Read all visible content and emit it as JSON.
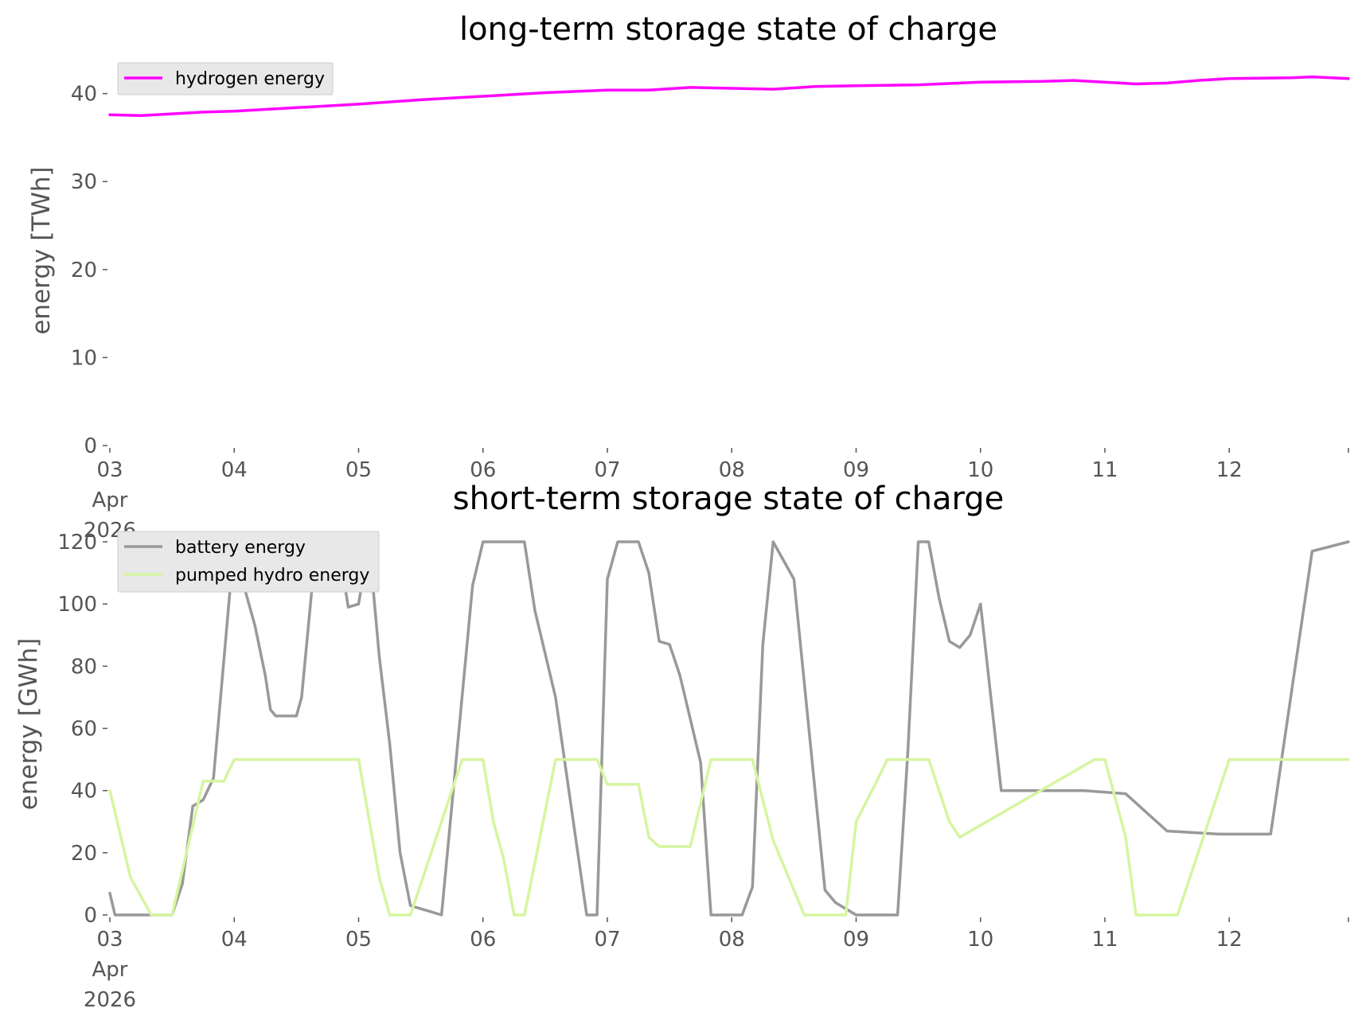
{
  "chart_data": [
    {
      "type": "line",
      "title": "long-term storage state of charge",
      "xlabel": "",
      "ylabel": "energy [TWh]",
      "ylim": [
        0,
        42.5
      ],
      "yticks": [
        0,
        10,
        20,
        30,
        40
      ],
      "x_range_days": [
        "2026-04-03",
        "2026-04-12T23:00"
      ],
      "x_tick_labels": [
        [
          "03",
          "Apr",
          "2026"
        ],
        [
          "04"
        ],
        [
          "05"
        ],
        [
          "06"
        ],
        [
          "07"
        ],
        [
          "08"
        ],
        [
          "09"
        ],
        [
          "10"
        ],
        [
          "11"
        ],
        [
          "12"
        ]
      ],
      "grid": false,
      "legend_placement": "top-left",
      "series": [
        {
          "name": "hydrogen energy",
          "color": "#ff00ff",
          "x": [
            "2026-04-03T00:00",
            "2026-04-03T06:00",
            "2026-04-03T12:00",
            "2026-04-03T18:00",
            "2026-04-04T00:00",
            "2026-04-04T12:00",
            "2026-04-05T00:00",
            "2026-04-05T12:00",
            "2026-04-06T00:00",
            "2026-04-06T12:00",
            "2026-04-07T00:00",
            "2026-04-07T08:00",
            "2026-04-07T16:00",
            "2026-04-08T00:00",
            "2026-04-08T08:00",
            "2026-04-08T16:00",
            "2026-04-09T00:00",
            "2026-04-09T12:00",
            "2026-04-10T00:00",
            "2026-04-10T12:00",
            "2026-04-10T18:00",
            "2026-04-11T06:00",
            "2026-04-11T12:00",
            "2026-04-11T18:00",
            "2026-04-12T00:00",
            "2026-04-12T12:00",
            "2026-04-12T16:00",
            "2026-04-12T23:00"
          ],
          "values": [
            37.6,
            37.5,
            37.7,
            37.9,
            38.0,
            38.4,
            38.8,
            39.3,
            39.7,
            40.1,
            40.4,
            40.4,
            40.7,
            40.6,
            40.5,
            40.8,
            40.9,
            41.0,
            41.3,
            41.4,
            41.5,
            41.1,
            41.2,
            41.5,
            41.7,
            41.8,
            41.9,
            41.7
          ]
        }
      ]
    },
    {
      "type": "line",
      "title": "short-term storage state of charge",
      "xlabel": "",
      "ylabel": "energy [GWh]",
      "ylim": [
        0,
        120
      ],
      "yticks": [
        0,
        20,
        40,
        60,
        80,
        100,
        120
      ],
      "x_range_days": [
        "2026-04-03",
        "2026-04-12T23:00"
      ],
      "x_tick_labels": [
        [
          "03",
          "Apr",
          "2026"
        ],
        [
          "04"
        ],
        [
          "05"
        ],
        [
          "06"
        ],
        [
          "07"
        ],
        [
          "08"
        ],
        [
          "09"
        ],
        [
          "10"
        ],
        [
          "11"
        ],
        [
          "12"
        ]
      ],
      "grid": false,
      "legend_placement": "top-left",
      "series": [
        {
          "name": "battery energy",
          "color": "#999999",
          "x": [
            "2026-04-03T00:00",
            "2026-04-03T01:00",
            "2026-04-03T02:00",
            "2026-04-03T12:00",
            "2026-04-03T14:00",
            "2026-04-03T16:00",
            "2026-04-03T18:00",
            "2026-04-03T20:00",
            "2026-04-04T00:00",
            "2026-04-04T02:00",
            "2026-04-04T04:00",
            "2026-04-04T06:00",
            "2026-04-04T07:00",
            "2026-04-04T08:00",
            "2026-04-04T09:00",
            "2026-04-04T12:00",
            "2026-04-04T13:00",
            "2026-04-04T15:00",
            "2026-04-04T18:00",
            "2026-04-04T20:00",
            "2026-04-04T22:00",
            "2026-04-05T00:00",
            "2026-04-05T02:00",
            "2026-04-05T04:00",
            "2026-04-05T06:00",
            "2026-04-05T08:00",
            "2026-04-05T10:00",
            "2026-04-05T16:00",
            "2026-04-05T22:00",
            "2026-04-06T00:00",
            "2026-04-06T04:00",
            "2026-04-06T08:00",
            "2026-04-06T10:00",
            "2026-04-06T14:00",
            "2026-04-06T20:00",
            "2026-04-06T22:00",
            "2026-04-07T00:00",
            "2026-04-07T02:00",
            "2026-04-07T06:00",
            "2026-04-07T08:00",
            "2026-04-07T10:00",
            "2026-04-07T12:00",
            "2026-04-07T14:00",
            "2026-04-07T18:00",
            "2026-04-07T20:00",
            "2026-04-07T22:00",
            "2026-04-08T02:00",
            "2026-04-08T04:00",
            "2026-04-08T06:00",
            "2026-04-08T08:00",
            "2026-04-08T12:00",
            "2026-04-08T18:00",
            "2026-04-08T20:00",
            "2026-04-08T22:00",
            "2026-04-09T00:00",
            "2026-04-09T02:00",
            "2026-04-09T04:00",
            "2026-04-09T06:00",
            "2026-04-09T08:00",
            "2026-04-09T10:00",
            "2026-04-09T12:00",
            "2026-04-09T14:00",
            "2026-04-09T16:00",
            "2026-04-09T18:00",
            "2026-04-09T20:00",
            "2026-04-09T22:00",
            "2026-04-10T00:00",
            "2026-04-10T04:00",
            "2026-04-10T20:00",
            "2026-04-11T04:00",
            "2026-04-11T12:00",
            "2026-04-11T22:00",
            "2026-04-12T00:00",
            "2026-04-12T08:00",
            "2026-04-12T16:00",
            "2026-04-12T23:00"
          ],
          "values": [
            7,
            0,
            0,
            0,
            10,
            35,
            37,
            44,
            120,
            105,
            93,
            77,
            66,
            64,
            64,
            64,
            70,
            105,
            120,
            120,
            99,
            100,
            120,
            83,
            55,
            20,
            3,
            0,
            106,
            120,
            120,
            120,
            98,
            70,
            0,
            0,
            108,
            120,
            120,
            110,
            88,
            87,
            77,
            49,
            0,
            0,
            0,
            9,
            87,
            120,
            108,
            8,
            4,
            2,
            0,
            0,
            0,
            0,
            0,
            53,
            120,
            120,
            102,
            88,
            86,
            90,
            100,
            40,
            40,
            39,
            27,
            26,
            26,
            26,
            117,
            120
          ],
          "values_alt": []
        },
        {
          "name": "pumped hydro energy",
          "color": "#d6f5a0",
          "x": [
            "2026-04-03T00:00",
            "2026-04-03T04:00",
            "2026-04-03T08:00",
            "2026-04-03T12:00",
            "2026-04-03T18:00",
            "2026-04-03T22:00",
            "2026-04-04T00:00",
            "2026-04-04T22:00",
            "2026-04-05T00:00",
            "2026-04-05T04:00",
            "2026-04-05T06:00",
            "2026-04-05T10:00",
            "2026-04-05T20:00",
            "2026-04-06T00:00",
            "2026-04-06T02:00",
            "2026-04-06T04:00",
            "2026-04-06T06:00",
            "2026-04-06T08:00",
            "2026-04-06T14:00",
            "2026-04-06T22:00",
            "2026-04-07T00:00",
            "2026-04-07T02:00",
            "2026-04-07T06:00",
            "2026-04-07T08:00",
            "2026-04-07T10:00",
            "2026-04-07T14:00",
            "2026-04-07T16:00",
            "2026-04-07T20:00",
            "2026-04-08T00:00",
            "2026-04-08T04:00",
            "2026-04-08T08:00",
            "2026-04-08T14:00",
            "2026-04-08T18:00",
            "2026-04-08T22:00",
            "2026-04-09T00:00",
            "2026-04-09T04:00",
            "2026-04-09T06:00",
            "2026-04-09T10:00",
            "2026-04-09T14:00",
            "2026-04-09T18:00",
            "2026-04-09T20:00",
            "2026-04-10T22:00",
            "2026-04-11T00:00",
            "2026-04-11T04:00",
            "2026-04-11T06:00",
            "2026-04-11T10:00",
            "2026-04-11T14:00",
            "2026-04-11T18:00",
            "2026-04-12T00:00",
            "2026-04-12T23:00"
          ],
          "values": [
            40,
            12,
            0,
            0,
            43,
            43,
            50,
            50,
            50,
            12,
            0,
            0,
            50,
            50,
            30,
            18,
            0,
            0,
            50,
            50,
            42,
            42,
            42,
            25,
            22,
            22,
            22,
            50,
            50,
            50,
            24,
            0,
            0,
            0,
            30,
            43,
            50,
            50,
            50,
            30,
            25,
            50,
            50,
            25,
            0,
            0,
            0,
            20,
            50,
            50
          ]
        }
      ]
    }
  ]
}
